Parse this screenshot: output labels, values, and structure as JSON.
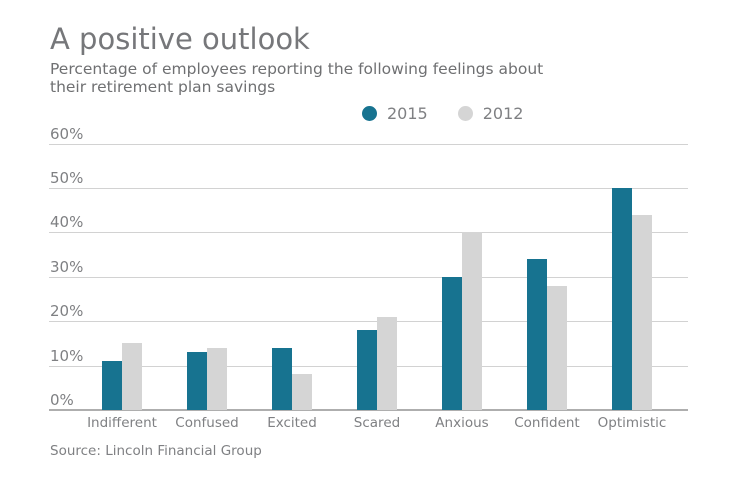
{
  "header": {
    "title": "A positive outlook",
    "subtitle_line1": "Percentage of employees reporting the following feelings about",
    "subtitle_line2": "their retirement plan savings"
  },
  "chart_data": {
    "type": "bar",
    "title": "A positive outlook",
    "subtitle": "Percentage of employees reporting the following feelings about their retirement plan savings",
    "categories": [
      "Indifferent",
      "Confused",
      "Excited",
      "Scared",
      "Anxious",
      "Confident",
      "Optimistic"
    ],
    "series": [
      {
        "name": "2015",
        "color": "#177390",
        "values": [
          11,
          13,
          14,
          18,
          30,
          34,
          50
        ]
      },
      {
        "name": "2012",
        "color": "#d5d5d5",
        "values": [
          15,
          14,
          8,
          21,
          40,
          28,
          44
        ]
      }
    ],
    "xlabel": "",
    "ylabel": "",
    "ylim": [
      0,
      60
    ],
    "y_ticks": [
      {
        "value": 0,
        "label": "0%"
      },
      {
        "value": 10,
        "label": "10%"
      },
      {
        "value": 20,
        "label": "20%"
      },
      {
        "value": 30,
        "label": "30%"
      },
      {
        "value": 40,
        "label": "40%"
      },
      {
        "value": 50,
        "label": "50%"
      },
      {
        "value": 60,
        "label": "60%"
      }
    ],
    "grid": true,
    "legend_position": "top-center"
  },
  "footer": {
    "source": "Source: Lincoln Financial Group"
  }
}
